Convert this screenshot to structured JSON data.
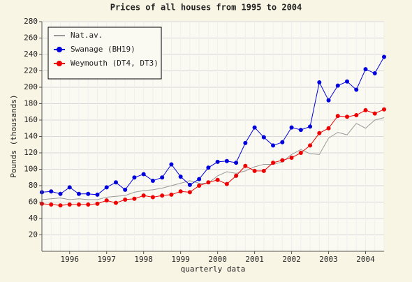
{
  "chart_data": {
    "type": "line",
    "title": "Prices of all houses from 1995 to 2004",
    "x_label": "quarterly data",
    "y_label": "Pounds (thousands)",
    "categories": [
      null,
      null,
      null,
      "1996",
      null,
      null,
      null,
      "1997",
      null,
      null,
      null,
      "1998",
      null,
      null,
      null,
      "1999",
      null,
      null,
      null,
      "2000",
      null,
      null,
      null,
      "2001",
      null,
      null,
      null,
      "2002",
      null,
      null,
      null,
      "2003",
      null,
      null,
      null,
      "2004",
      null,
      null
    ],
    "series": [
      {
        "name": "Nat.av.",
        "color": "#999999",
        "marker": false,
        "values": [
          63,
          64,
          65,
          63,
          64,
          63,
          63,
          66,
          67,
          68,
          72,
          74,
          75,
          77,
          80,
          83,
          86,
          83,
          83,
          92,
          97,
          95,
          98,
          103,
          106,
          106,
          109,
          118,
          124,
          119,
          118,
          138,
          145,
          142,
          156,
          150,
          160,
          163
        ]
      },
      {
        "name": "Swanage (BH19)",
        "color": "#0000dd",
        "marker": true,
        "values": [
          72,
          73,
          70,
          78,
          70,
          70,
          69,
          78,
          84,
          75,
          90,
          94,
          86,
          90,
          106,
          91,
          81,
          88,
          102,
          109,
          110,
          108,
          132,
          151,
          139,
          129,
          133,
          151,
          148,
          152,
          206,
          184,
          202,
          207,
          197,
          222,
          217,
          237
        ]
      },
      {
        "name": "Weymouth (DT4, DT3)",
        "color": "#ee0000",
        "marker": true,
        "values": [
          58,
          57,
          56,
          57,
          57,
          57,
          58,
          62,
          59,
          63,
          64,
          68,
          66,
          68,
          69,
          73,
          72,
          80,
          84,
          87,
          82,
          92,
          104,
          98,
          98,
          108,
          111,
          114,
          120,
          129,
          144,
          150,
          165,
          164,
          166,
          172,
          168,
          173
        ]
      }
    ],
    "ylim": [
      0,
      280
    ],
    "yticks": [
      20,
      40,
      60,
      80,
      100,
      120,
      140,
      160,
      180,
      200,
      220,
      240,
      260,
      280
    ],
    "grid": true,
    "legend": "top-left"
  }
}
